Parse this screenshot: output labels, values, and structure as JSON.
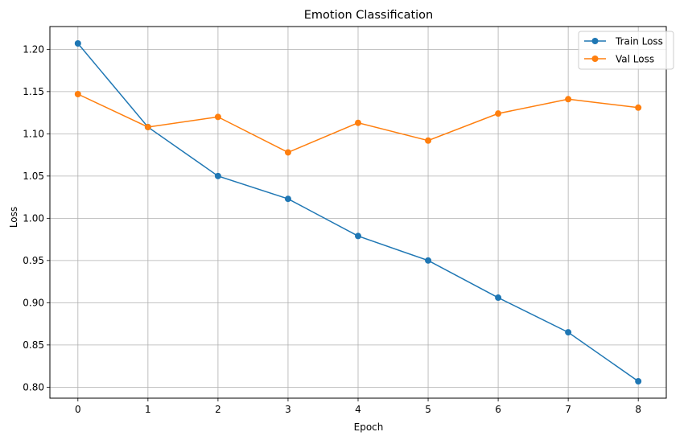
{
  "chart_data": {
    "type": "line",
    "title": "Emotion Classification",
    "xlabel": "Epoch",
    "ylabel": "Loss",
    "x": [
      0,
      1,
      2,
      3,
      4,
      5,
      6,
      7,
      8
    ],
    "xlim": [
      -0.4,
      8.4
    ],
    "ylim": [
      0.787,
      1.227
    ],
    "x_ticks": [
      "0",
      "1",
      "2",
      "3",
      "4",
      "5",
      "6",
      "7",
      "8"
    ],
    "y_ticks": [
      {
        "value": 0.8,
        "label": "0.80"
      },
      {
        "value": 0.85,
        "label": "0.85"
      },
      {
        "value": 0.9,
        "label": "0.90"
      },
      {
        "value": 0.95,
        "label": "0.95"
      },
      {
        "value": 1.0,
        "label": "1.00"
      },
      {
        "value": 1.05,
        "label": "1.05"
      },
      {
        "value": 1.1,
        "label": "1.10"
      },
      {
        "value": 1.15,
        "label": "1.15"
      },
      {
        "value": 1.2,
        "label": "1.20"
      }
    ],
    "grid": true,
    "legend_position": "top-right",
    "series": [
      {
        "name": "Train Loss",
        "color": "#1f77b4",
        "marker": "circle",
        "values": [
          1.207,
          1.108,
          1.05,
          1.023,
          0.979,
          0.95,
          0.906,
          0.865,
          0.807
        ]
      },
      {
        "name": "Val Loss",
        "color": "#ff7f0e",
        "marker": "circle",
        "values": [
          1.147,
          1.108,
          1.12,
          1.078,
          1.113,
          1.092,
          1.124,
          1.141,
          1.131
        ]
      }
    ]
  }
}
